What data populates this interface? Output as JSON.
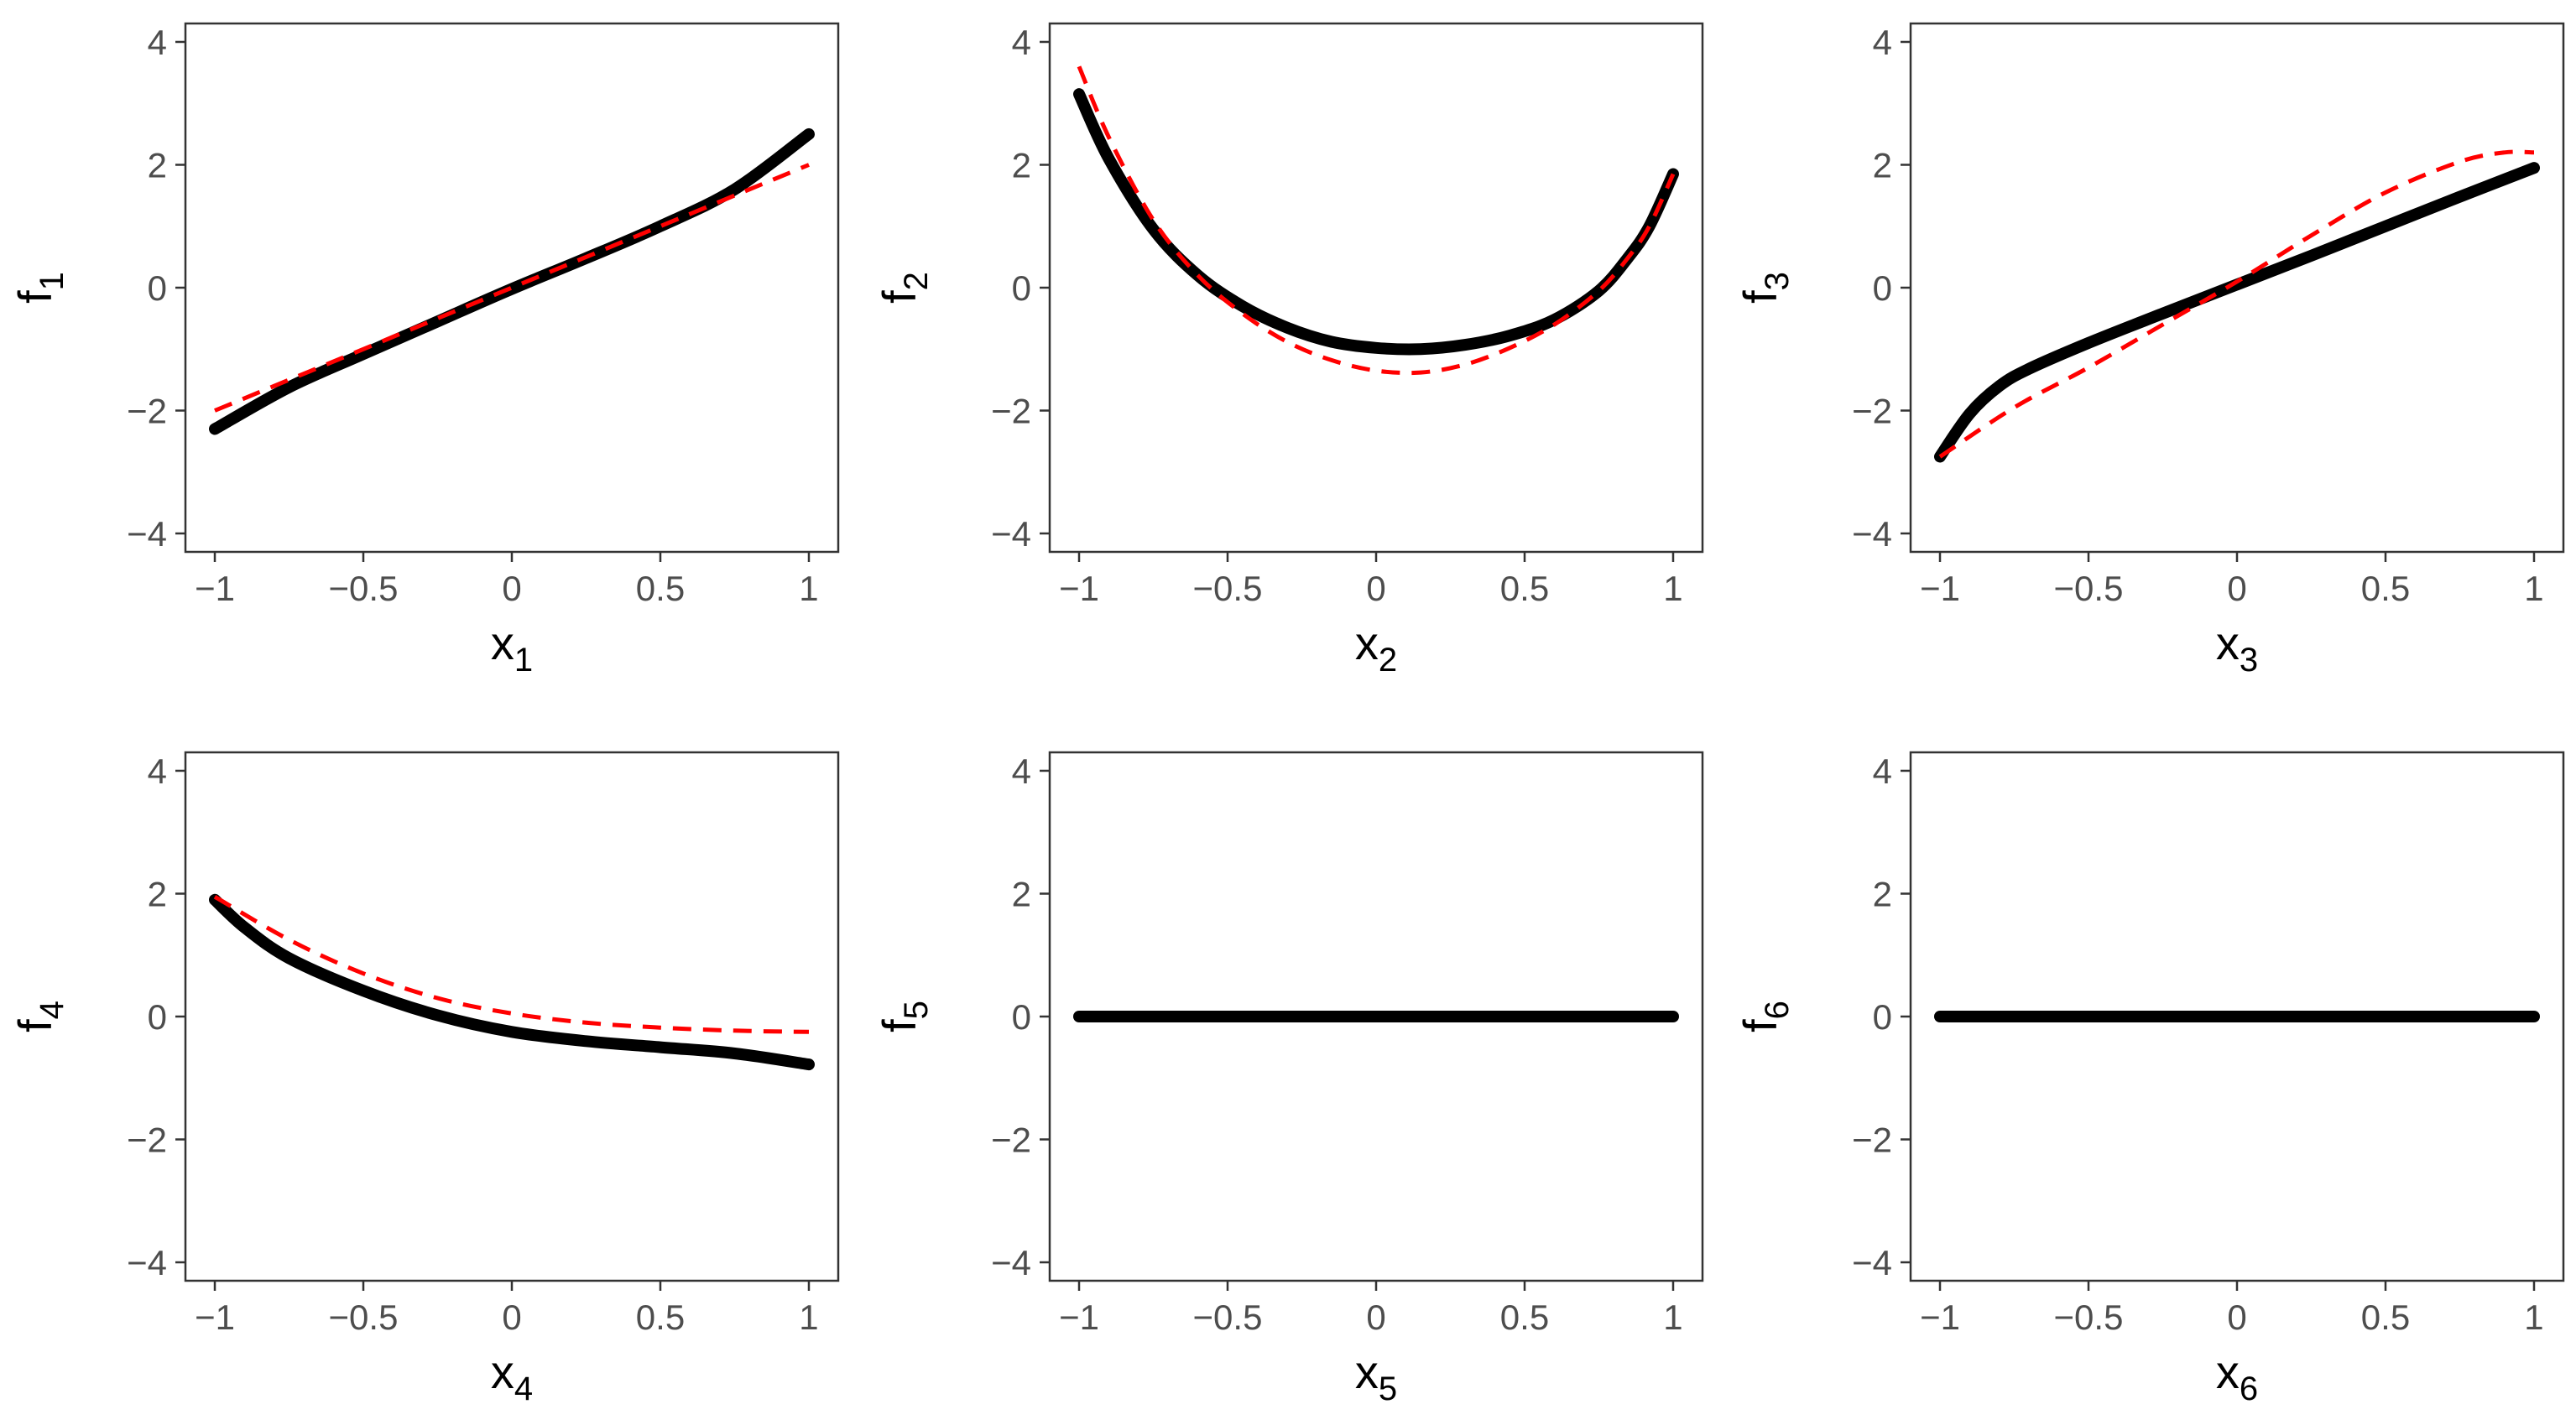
{
  "chart_data": [
    {
      "type": "line",
      "xlabel": {
        "base": "x",
        "sub": "1"
      },
      "ylabel": {
        "base": "f",
        "sub": "1"
      },
      "xlim": [
        -1,
        1
      ],
      "ylim": [
        -4.3,
        4.3
      ],
      "xticks": [
        -1,
        -0.5,
        0,
        0.5,
        1
      ],
      "yticks": [
        -4,
        -2,
        0,
        2,
        4
      ],
      "series": [
        {
          "style": "solid",
          "color": "#000000",
          "x": [
            -1,
            -0.75,
            -0.5,
            -0.25,
            0,
            0.25,
            0.5,
            0.75,
            1
          ],
          "y": [
            -2.3,
            -1.62,
            -1.08,
            -0.55,
            -0.02,
            0.48,
            1.0,
            1.6,
            2.5
          ]
        },
        {
          "style": "dashed",
          "color": "#ff0000",
          "x": [
            -1,
            -0.5,
            0,
            0.5,
            1
          ],
          "y": [
            -2.0,
            -1.0,
            0.0,
            1.0,
            2.0
          ]
        }
      ]
    },
    {
      "type": "line",
      "xlabel": {
        "base": "x",
        "sub": "2"
      },
      "ylabel": {
        "base": "f",
        "sub": "2"
      },
      "xlim": [
        -1,
        1
      ],
      "ylim": [
        -4.3,
        4.3
      ],
      "xticks": [
        -1,
        -0.5,
        0,
        0.5,
        1
      ],
      "yticks": [
        -4,
        -2,
        0,
        2,
        4
      ],
      "series": [
        {
          "style": "solid",
          "color": "#000000",
          "x": [
            -1,
            -0.9,
            -0.75,
            -0.6,
            -0.45,
            -0.3,
            -0.15,
            0,
            0.15,
            0.3,
            0.45,
            0.6,
            0.75,
            0.85,
            0.92,
            1
          ],
          "y": [
            3.15,
            2.1,
            0.95,
            0.2,
            -0.3,
            -0.65,
            -0.88,
            -0.98,
            -1.0,
            -0.93,
            -0.78,
            -0.52,
            -0.05,
            0.5,
            1.0,
            1.85
          ]
        },
        {
          "style": "dashed",
          "color": "#ff0000",
          "x": [
            -1,
            -0.9,
            -0.75,
            -0.6,
            -0.45,
            -0.3,
            -0.15,
            0,
            0.15,
            0.3,
            0.45,
            0.6,
            0.75,
            0.85,
            0.92,
            1
          ],
          "y": [
            3.6,
            2.45,
            1.1,
            0.2,
            -0.42,
            -0.88,
            -1.18,
            -1.35,
            -1.38,
            -1.25,
            -0.98,
            -0.6,
            -0.05,
            0.5,
            1.0,
            1.85
          ]
        }
      ]
    },
    {
      "type": "line",
      "xlabel": {
        "base": "x",
        "sub": "3"
      },
      "ylabel": {
        "base": "f",
        "sub": "3"
      },
      "xlim": [
        -1,
        1
      ],
      "ylim": [
        -4.3,
        4.3
      ],
      "xticks": [
        -1,
        -0.5,
        0,
        0.5,
        1
      ],
      "yticks": [
        -4,
        -2,
        0,
        2,
        4
      ],
      "series": [
        {
          "style": "solid",
          "color": "#000000",
          "x": [
            -1,
            -0.9,
            -0.8,
            -0.7,
            -0.5,
            -0.25,
            0,
            0.25,
            0.5,
            0.75,
            1
          ],
          "y": [
            -2.75,
            -2.05,
            -1.6,
            -1.32,
            -0.9,
            -0.42,
            0.05,
            0.52,
            1.0,
            1.48,
            1.95
          ]
        },
        {
          "style": "dashed",
          "color": "#ff0000",
          "x": [
            -1,
            -0.75,
            -0.5,
            -0.25,
            0,
            0.25,
            0.5,
            0.75,
            0.9,
            1
          ],
          "y": [
            -2.75,
            -1.95,
            -1.3,
            -0.6,
            0.1,
            0.85,
            1.55,
            2.05,
            2.2,
            2.2
          ]
        }
      ]
    },
    {
      "type": "line",
      "xlabel": {
        "base": "x",
        "sub": "4"
      },
      "ylabel": {
        "base": "f",
        "sub": "4"
      },
      "xlim": [
        -1,
        1
      ],
      "ylim": [
        -4.3,
        4.3
      ],
      "xticks": [
        -1,
        -0.5,
        0,
        0.5,
        1
      ],
      "yticks": [
        -4,
        -2,
        0,
        2,
        4
      ],
      "series": [
        {
          "style": "solid",
          "color": "#000000",
          "x": [
            -1,
            -0.9,
            -0.75,
            -0.5,
            -0.25,
            0,
            0.25,
            0.5,
            0.75,
            1
          ],
          "y": [
            1.9,
            1.45,
            0.95,
            0.42,
            0.02,
            -0.25,
            -0.4,
            -0.5,
            -0.6,
            -0.78
          ]
        },
        {
          "style": "dashed",
          "color": "#ff0000",
          "x": [
            -1,
            -0.75,
            -0.5,
            -0.25,
            0,
            0.25,
            0.5,
            0.75,
            1
          ],
          "y": [
            1.95,
            1.25,
            0.7,
            0.3,
            0.05,
            -0.1,
            -0.18,
            -0.23,
            -0.25
          ]
        }
      ]
    },
    {
      "type": "line",
      "xlabel": {
        "base": "x",
        "sub": "5"
      },
      "ylabel": {
        "base": "f",
        "sub": "5"
      },
      "xlim": [
        -1,
        1
      ],
      "ylim": [
        -4.3,
        4.3
      ],
      "xticks": [
        -1,
        -0.5,
        0,
        0.5,
        1
      ],
      "yticks": [
        -4,
        -2,
        0,
        2,
        4
      ],
      "series": [
        {
          "style": "solid",
          "color": "#000000",
          "x": [
            -1,
            1
          ],
          "y": [
            0,
            0
          ]
        }
      ]
    },
    {
      "type": "line",
      "xlabel": {
        "base": "x",
        "sub": "6"
      },
      "ylabel": {
        "base": "f",
        "sub": "6"
      },
      "xlim": [
        -1,
        1
      ],
      "ylim": [
        -4.3,
        4.3
      ],
      "xticks": [
        -1,
        -0.5,
        0,
        0.5,
        1
      ],
      "yticks": [
        -4,
        -2,
        0,
        2,
        4
      ],
      "series": [
        {
          "style": "solid",
          "color": "#000000",
          "x": [
            -1,
            1
          ],
          "y": [
            0,
            0
          ]
        }
      ]
    }
  ]
}
